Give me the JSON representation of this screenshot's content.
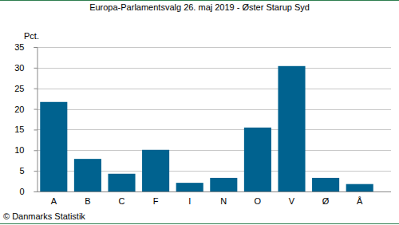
{
  "chart_data": {
    "type": "bar",
    "title": "Europa-Parlamentsvalg 26. maj 2019 - Øster Starup Syd",
    "y_label": "Pct.",
    "annotations": [
      "© Danmarks Statistik"
    ],
    "categories": [
      "A",
      "B",
      "C",
      "F",
      "I",
      "N",
      "O",
      "V",
      "Ø",
      "Å"
    ],
    "values": [
      21.7,
      7.9,
      4.3,
      10.1,
      2.1,
      3.3,
      15.5,
      30.4,
      3.3,
      1.8
    ],
    "color": "#00628f",
    "ylim": [
      0,
      35
    ],
    "yticks": [
      0,
      5,
      10,
      15,
      20,
      25,
      30,
      35
    ],
    "grid": true
  }
}
